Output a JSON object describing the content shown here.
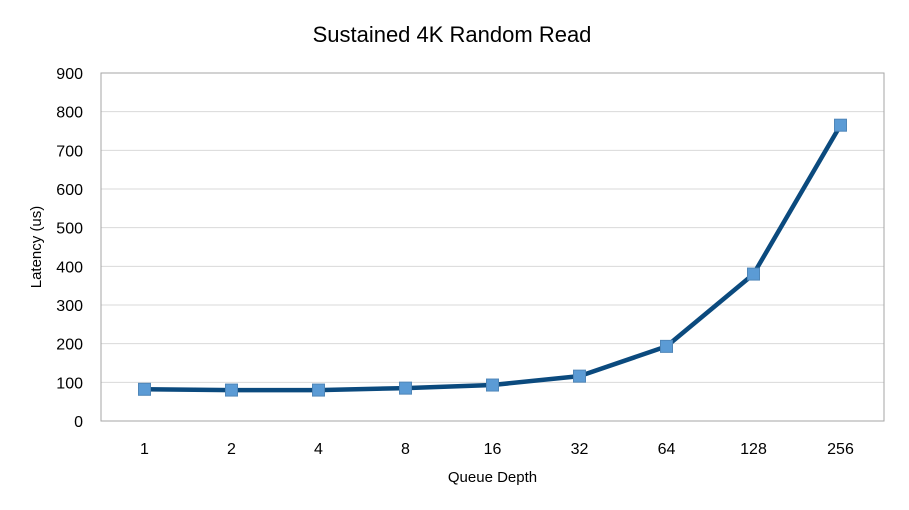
{
  "chart_data": {
    "type": "line",
    "title": "Sustained 4K Random Read",
    "xlabel": "Queue Depth",
    "ylabel": "Latency (us)",
    "categories": [
      "1",
      "2",
      "4",
      "8",
      "16",
      "32",
      "64",
      "128",
      "256"
    ],
    "series": [
      {
        "values": [
          82,
          80,
          80,
          85,
          93,
          116,
          193,
          380,
          765
        ]
      }
    ],
    "ylim": [
      0,
      900
    ],
    "yticks": [
      0,
      100,
      200,
      300,
      400,
      500,
      600,
      700,
      800,
      900
    ],
    "grid": true,
    "legend": "none",
    "colors": {
      "line": "#0b4a7e",
      "marker": "#5b9bd5",
      "grid": "#d9d9d9",
      "border": "#a6a6a6"
    }
  }
}
